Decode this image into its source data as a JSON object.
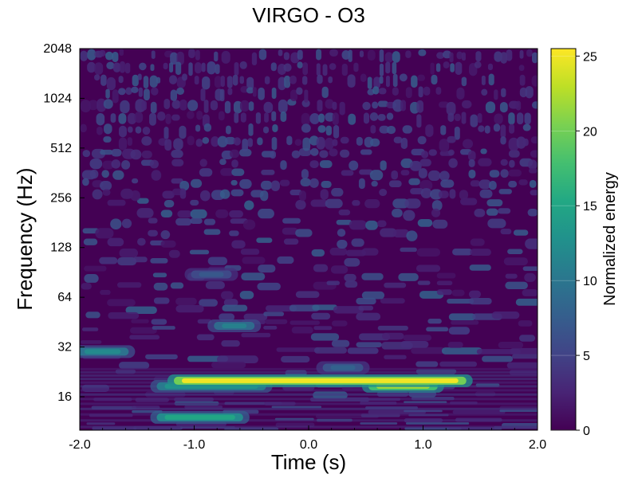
{
  "chart_data": {
    "type": "heatmap",
    "title": "VIRGO - O3",
    "xlabel": "Time (s)",
    "ylabel": "Frequency (Hz)",
    "xlim": [
      -2.0,
      2.0
    ],
    "ylim": [
      10,
      2048
    ],
    "yscale": "log2",
    "x_ticks": [
      -2.0,
      -1.0,
      0.0,
      1.0,
      2.0
    ],
    "x_tick_labels": [
      "-2.0",
      "-1.0",
      "0.0",
      "1.0",
      "2.0"
    ],
    "y_ticks": [
      16,
      32,
      64,
      128,
      256,
      512,
      1024,
      2048
    ],
    "y_tick_labels": [
      "16",
      "32",
      "64",
      "128",
      "256",
      "512",
      "1024",
      "2048"
    ],
    "grid": false,
    "colormap": "viridis",
    "colorbar": {
      "label": "Normalized energy",
      "range": [
        0,
        25.5
      ],
      "ticks": [
        0,
        5,
        10,
        15,
        20,
        25
      ],
      "tick_labels": [
        "0",
        "5",
        "10",
        "15",
        "20",
        "25"
      ]
    },
    "features": [
      {
        "t_start": -1.15,
        "t_end": 1.35,
        "freq": 20,
        "energy": 25
      },
      {
        "t_start": 0.55,
        "t_end": 1.1,
        "freq": 18.5,
        "energy": 22
      },
      {
        "t_start": -1.3,
        "t_end": -0.4,
        "freq": 18.5,
        "energy": 13
      },
      {
        "t_start": -1.3,
        "t_end": -0.6,
        "freq": 12,
        "energy": 15
      },
      {
        "t_start": -2.0,
        "t_end": -1.6,
        "freq": 30,
        "energy": 12
      },
      {
        "t_start": -0.8,
        "t_end": -0.5,
        "freq": 43,
        "energy": 11
      },
      {
        "t_start": -1.0,
        "t_end": -0.7,
        "freq": 88,
        "energy": 7
      },
      {
        "t_start": 0.15,
        "t_end": 0.45,
        "freq": 24,
        "energy": 8
      }
    ]
  },
  "colors": {
    "viridis_low": "#440154",
    "viridis_mid": "#21918c",
    "viridis_high": "#fde725"
  }
}
